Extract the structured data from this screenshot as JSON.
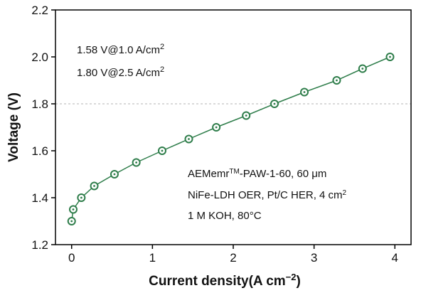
{
  "chart_data": {
    "type": "line",
    "xlabel": "Current density(A cm",
    "xlabel_sup": "−2",
    "xlabel_end": ")",
    "ylabel": "Voltage (V)",
    "xlim": [
      -0.2,
      4.2
    ],
    "ylim": [
      1.2,
      2.2
    ],
    "xticks": [
      0,
      1,
      2,
      3,
      4
    ],
    "yticks": [
      1.2,
      1.4,
      1.6,
      1.8,
      2.0,
      2.2
    ],
    "ytick_labels": [
      "1.2",
      "1.4",
      "1.6",
      "1.8",
      "2.0",
      "2.2"
    ],
    "grid_y": [
      1.8
    ],
    "series_color": "#2e7d4a",
    "marker": "open-circle-dot",
    "series": [
      {
        "x": [
          0.0,
          0.02,
          0.12,
          0.28,
          0.53,
          0.8,
          1.12,
          1.45,
          1.79,
          2.16,
          2.51,
          2.88,
          3.28,
          3.6,
          3.94
        ],
        "y": [
          1.3,
          1.35,
          1.4,
          1.45,
          1.5,
          1.55,
          1.6,
          1.65,
          1.7,
          1.75,
          1.8,
          1.85,
          1.9,
          1.95,
          2.0
        ]
      }
    ],
    "annotations_top": [
      {
        "text": "1.58 V@1.0 A/cm",
        "sup": "2"
      },
      {
        "text": "1.80 V@2.5 A/cm",
        "sup": "2"
      }
    ],
    "annotations_bottom": [
      {
        "text": "AEMemr",
        "sup": "TM",
        "after": "-PAW-1-60, 60 μm"
      },
      {
        "text": "NiFe-LDH OER, Pt/C HER, 4 cm",
        "sup": "2",
        "after": ""
      },
      {
        "text": "1 M KOH, 80°C",
        "sup": "",
        "after": ""
      }
    ]
  }
}
